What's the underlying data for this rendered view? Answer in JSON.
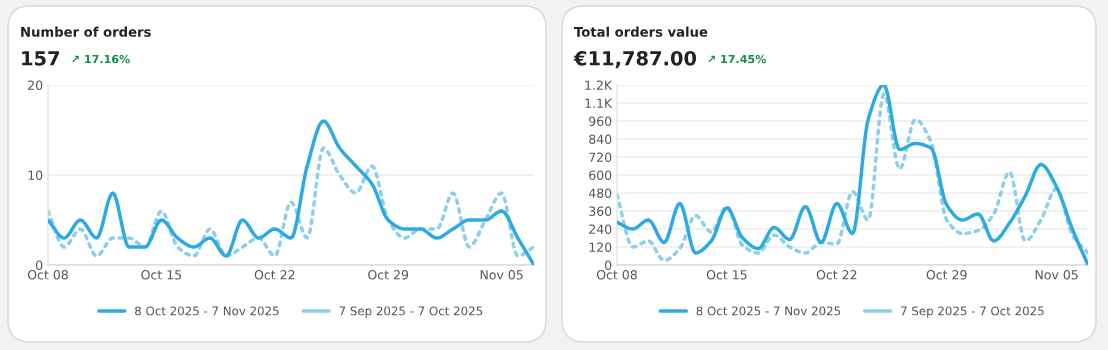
{
  "chart_data": [
    {
      "type": "line",
      "title": "Number of orders",
      "subtitle": "157",
      "annotations": [
        "↗ 17.16%"
      ],
      "x": [
        "2025-10-08",
        "2025-10-09",
        "2025-10-10",
        "2025-10-11",
        "2025-10-12",
        "2025-10-13",
        "2025-10-14",
        "2025-10-15",
        "2025-10-16",
        "2025-10-17",
        "2025-10-18",
        "2025-10-19",
        "2025-10-20",
        "2025-10-21",
        "2025-10-22",
        "2025-10-23",
        "2025-10-24",
        "2025-10-25",
        "2025-10-26",
        "2025-10-27",
        "2025-10-28",
        "2025-10-29",
        "2025-10-30",
        "2025-10-31",
        "2025-11-01",
        "2025-11-02",
        "2025-11-03",
        "2025-11-04",
        "2025-11-05",
        "2025-11-06",
        "2025-11-07"
      ],
      "series": [
        {
          "name": "8 Oct 2025 - 7 Nov 2025",
          "color": "#2eaae2",
          "line_style": "solid",
          "values": [
            5,
            3,
            5,
            3,
            8,
            2,
            2,
            5,
            3,
            2,
            3,
            1,
            5,
            3,
            4,
            3,
            11,
            16,
            13,
            11,
            9,
            5,
            4,
            4,
            3,
            4,
            5,
            5,
            6,
            3,
            0
          ]
        },
        {
          "name": "7 Sep 2025 - 7 Oct 2025",
          "color": "#8ccfec",
          "line_style": "dotted",
          "values": [
            6,
            2,
            4,
            1,
            3,
            3,
            2,
            6,
            2,
            1,
            4,
            1,
            2,
            3,
            1,
            7,
            3,
            13,
            10,
            8,
            11,
            5,
            3,
            4,
            4,
            8,
            2,
            5,
            8,
            1,
            2
          ]
        }
      ],
      "xlim": [
        "2025-10-08",
        "2025-11-07"
      ],
      "xticks": [
        {
          "value": "2025-10-08",
          "label": "Oct 08"
        },
        {
          "value": "2025-10-15",
          "label": "Oct 15"
        },
        {
          "value": "2025-10-22",
          "label": "Oct 22"
        },
        {
          "value": "2025-10-29",
          "label": "Oct 29"
        },
        {
          "value": "2025-11-05",
          "label": "Nov 05"
        }
      ],
      "ylim": [
        0,
        20
      ],
      "yticks": [
        0,
        10,
        20
      ],
      "grid": "y",
      "legend": "bottom",
      "marker": "none"
    },
    {
      "type": "line",
      "title": "Total orders value",
      "subtitle": "€11,787.00",
      "annotations": [
        "↗ 17.45%"
      ],
      "x": [
        "2025-10-08",
        "2025-10-09",
        "2025-10-10",
        "2025-10-11",
        "2025-10-12",
        "2025-10-13",
        "2025-10-14",
        "2025-10-15",
        "2025-10-16",
        "2025-10-17",
        "2025-10-18",
        "2025-10-19",
        "2025-10-20",
        "2025-10-21",
        "2025-10-22",
        "2025-10-23",
        "2025-10-24",
        "2025-10-25",
        "2025-10-26",
        "2025-10-27",
        "2025-10-28",
        "2025-10-29",
        "2025-10-30",
        "2025-10-31",
        "2025-11-01",
        "2025-11-02",
        "2025-11-03",
        "2025-11-04",
        "2025-11-05",
        "2025-11-06",
        "2025-11-07"
      ],
      "series": [
        {
          "name": "8 Oct 2025 - 7 Nov 2025",
          "color": "#2eaae2",
          "line_style": "solid",
          "values": [
            285,
            240,
            300,
            150,
            410,
            80,
            160,
            380,
            180,
            110,
            250,
            170,
            390,
            150,
            410,
            210,
            970,
            1200,
            770,
            810,
            780,
            400,
            300,
            340,
            160,
            280,
            460,
            670,
            520,
            240,
            0
          ]
        },
        {
          "name": "7 Sep 2025 - 7 Oct 2025",
          "color": "#8ccfec",
          "line_style": "dotted",
          "values": [
            470,
            120,
            160,
            30,
            110,
            330,
            220,
            390,
            130,
            80,
            200,
            120,
            80,
            150,
            140,
            490,
            300,
            1140,
            640,
            970,
            820,
            300,
            210,
            230,
            340,
            620,
            160,
            300,
            510,
            200,
            80
          ]
        }
      ],
      "xlim": [
        "2025-10-08",
        "2025-11-07"
      ],
      "xticks": [
        {
          "value": "2025-10-08",
          "label": "Oct 08"
        },
        {
          "value": "2025-10-15",
          "label": "Oct 15"
        },
        {
          "value": "2025-10-22",
          "label": "Oct 22"
        },
        {
          "value": "2025-10-29",
          "label": "Oct 29"
        },
        {
          "value": "2025-11-05",
          "label": "Nov 05"
        }
      ],
      "ylim": [
        0,
        1200
      ],
      "yticks": [
        0,
        120,
        240,
        360,
        480,
        600,
        720,
        840,
        960,
        {
          "value": 1080,
          "label": "1.1K"
        },
        {
          "value": 1200,
          "label": "1.2K"
        }
      ],
      "grid": "y",
      "legend": "bottom",
      "marker": "none"
    }
  ]
}
